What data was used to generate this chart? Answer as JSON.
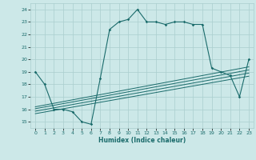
{
  "title": "",
  "xlabel": "Humidex (Indice chaleur)",
  "ylabel": "",
  "bg_color": "#cce8e8",
  "grid_color": "#aacece",
  "line_color": "#1a6b6b",
  "xlim": [
    -0.5,
    23.5
  ],
  "ylim": [
    14.5,
    24.5
  ],
  "xticks": [
    0,
    1,
    2,
    3,
    4,
    5,
    6,
    7,
    8,
    9,
    10,
    11,
    12,
    13,
    14,
    15,
    16,
    17,
    18,
    19,
    20,
    21,
    22,
    23
  ],
  "yticks": [
    15,
    16,
    17,
    18,
    19,
    20,
    21,
    22,
    23,
    24
  ],
  "line1_x": [
    0,
    1,
    2,
    3,
    4,
    5,
    6,
    7,
    8,
    9,
    10,
    11,
    12,
    13,
    14,
    15,
    16,
    17,
    18,
    19,
    20,
    21,
    22,
    23
  ],
  "line1_y": [
    19,
    18,
    16,
    16,
    15.8,
    15,
    14.8,
    18.5,
    22.4,
    23,
    23.2,
    24,
    23,
    23,
    22.8,
    23,
    23,
    22.8,
    22.8,
    19.3,
    19,
    18.7,
    17,
    20
  ],
  "line2_x": [
    0,
    23
  ],
  "line2_y": [
    16.2,
    19.4
  ],
  "line3_x": [
    0,
    23
  ],
  "line3_y": [
    16.05,
    19.15
  ],
  "line4_x": [
    0,
    23
  ],
  "line4_y": [
    15.85,
    18.9
  ],
  "line5_x": [
    0,
    23
  ],
  "line5_y": [
    15.65,
    18.65
  ]
}
